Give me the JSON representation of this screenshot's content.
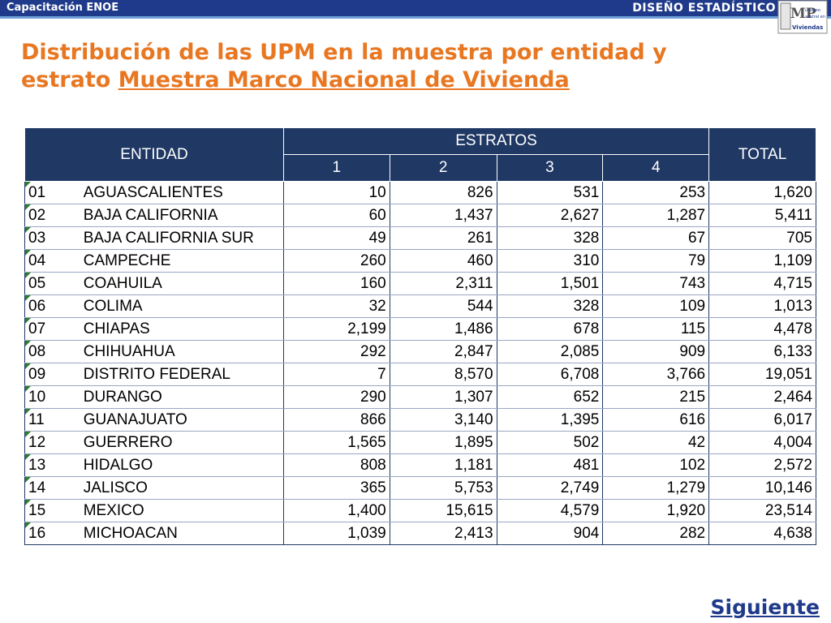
{
  "header": {
    "left_label": "Capacitación ENOE",
    "right_label": "DISEÑO ESTADÍSTICO",
    "logo_text": "Muestreo Maestral en Viviendas",
    "logo_letters": "MP"
  },
  "title": {
    "line1": "Distribución de las UPM en la muestra por entidad y",
    "line2_plain": "estrato ",
    "line2_underlined": "Muestra Marco Nacional de Vivienda"
  },
  "table": {
    "col_entidad": "ENTIDAD",
    "col_estratos": "ESTRATOS",
    "col_total": "TOTAL",
    "estratos": [
      "1",
      "2",
      "3",
      "4"
    ],
    "rows": [
      {
        "code": "01",
        "name": "AGUASCALIENTES",
        "e1": "10",
        "e2": "826",
        "e3": "531",
        "e4": "253",
        "total": "1,620"
      },
      {
        "code": "02",
        "name": "BAJA CALIFORNIA",
        "e1": "60",
        "e2": "1,437",
        "e3": "2,627",
        "e4": "1,287",
        "total": "5,411"
      },
      {
        "code": "03",
        "name": "BAJA CALIFORNIA SUR",
        "e1": "49",
        "e2": "261",
        "e3": "328",
        "e4": "67",
        "total": "705"
      },
      {
        "code": "04",
        "name": "CAMPECHE",
        "e1": "260",
        "e2": "460",
        "e3": "310",
        "e4": "79",
        "total": "1,109"
      },
      {
        "code": "05",
        "name": "COAHUILA",
        "e1": "160",
        "e2": "2,311",
        "e3": "1,501",
        "e4": "743",
        "total": "4,715"
      },
      {
        "code": "06",
        "name": "COLIMA",
        "e1": "32",
        "e2": "544",
        "e3": "328",
        "e4": "109",
        "total": "1,013"
      },
      {
        "code": "07",
        "name": "CHIAPAS",
        "e1": "2,199",
        "e2": "1,486",
        "e3": "678",
        "e4": "115",
        "total": "4,478"
      },
      {
        "code": "08",
        "name": "CHIHUAHUA",
        "e1": "292",
        "e2": "2,847",
        "e3": "2,085",
        "e4": "909",
        "total": "6,133"
      },
      {
        "code": "09",
        "name": "DISTRITO FEDERAL",
        "e1": "7",
        "e2": "8,570",
        "e3": "6,708",
        "e4": "3,766",
        "total": "19,051"
      },
      {
        "code": "10",
        "name": "DURANGO",
        "e1": "290",
        "e2": "1,307",
        "e3": "652",
        "e4": "215",
        "total": "2,464"
      },
      {
        "code": "11",
        "name": "GUANAJUATO",
        "e1": "866",
        "e2": "3,140",
        "e3": "1,395",
        "e4": "616",
        "total": "6,017"
      },
      {
        "code": "12",
        "name": "GUERRERO",
        "e1": "1,565",
        "e2": "1,895",
        "e3": "502",
        "e4": "42",
        "total": "4,004"
      },
      {
        "code": "13",
        "name": "HIDALGO",
        "e1": "808",
        "e2": "1,181",
        "e3": "481",
        "e4": "102",
        "total": "2,572"
      },
      {
        "code": "14",
        "name": "JALISCO",
        "e1": "365",
        "e2": "5,753",
        "e3": "2,749",
        "e4": "1,279",
        "total": "10,146"
      },
      {
        "code": "15",
        "name": "MEXICO",
        "e1": "1,400",
        "e2": "15,615",
        "e3": "4,579",
        "e4": "1,920",
        "total": "23,514"
      },
      {
        "code": "16",
        "name": "MICHOACAN",
        "e1": "1,039",
        "e2": "2,413",
        "e3": "904",
        "e4": "282",
        "total": "4,638"
      }
    ]
  },
  "footer": {
    "next_link": "Siguiente"
  },
  "colors": {
    "header_bar": "#1f3a8a",
    "title": "#e87722",
    "table_header": "#1f3864",
    "cell_marker": "#2e7d32"
  }
}
